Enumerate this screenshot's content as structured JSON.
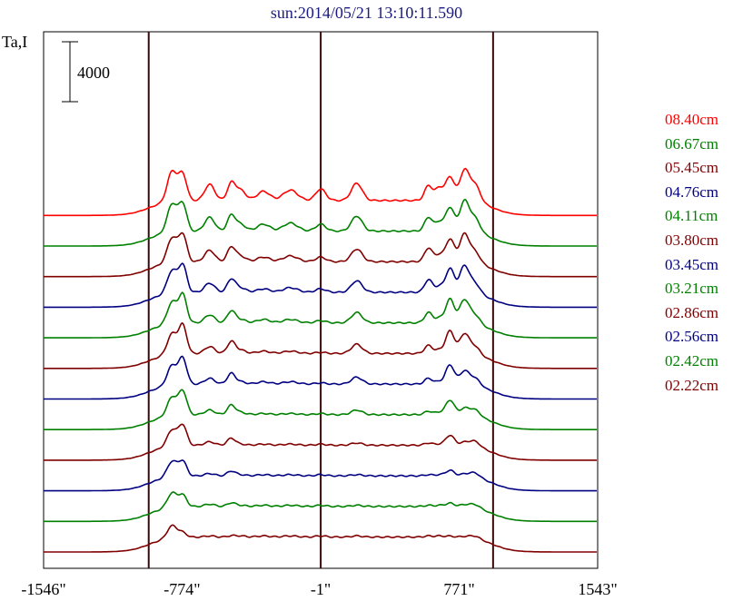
{
  "title": "sun:2014/05/21 13:10:11.590",
  "chart_data": {
    "type": "line",
    "title": "sun:2014/05/21 13:10:11.590",
    "ylabel": "Ta,I",
    "scale_bar_label": "4000",
    "scale_bar_value": 4000,
    "x_ticks": [
      "-1546\"",
      "-774\"",
      "-1\"",
      "771\"",
      "1543\""
    ],
    "x_tick_values": [
      -1546,
      -774,
      -1,
      771,
      1543
    ],
    "xlim": [
      -1546,
      1543
    ],
    "vertical_markers": [
      -960,
      -1,
      960
    ],
    "series": [
      {
        "name": "08.40cm",
        "color": "#ff0000",
        "offset": 11,
        "peaks": [
          2.9,
          2.3,
          1.4,
          1.4,
          0.9,
          0.8,
          0.9,
          1.0,
          1.5,
          1.3,
          1.1,
          2.1,
          2.7,
          1.8
        ]
      },
      {
        "name": "06.67cm",
        "color": "#008000",
        "offset": 10,
        "peaks": [
          2.7,
          2.4,
          1.2,
          1.3,
          0.6,
          0.6,
          0.7,
          0.6,
          1.3,
          1.2,
          0.8,
          2.1,
          2.7,
          1.5
        ]
      },
      {
        "name": "05.45cm",
        "color": "#800000",
        "offset": 9,
        "peaks": [
          2.4,
          2.4,
          1.0,
          1.2,
          0.5,
          0.4,
          0.5,
          0.4,
          1.1,
          1.2,
          0.6,
          2.0,
          2.5,
          1.2
        ]
      },
      {
        "name": "04.76cm",
        "color": "#000080",
        "offset": 8,
        "peaks": [
          2.2,
          2.4,
          0.8,
          1.1,
          0.4,
          0.3,
          0.4,
          0.3,
          1.0,
          1.1,
          0.5,
          2.1,
          2.4,
          1.1
        ]
      },
      {
        "name": "04.11cm",
        "color": "#008000",
        "offset": 7,
        "peaks": [
          2.1,
          2.5,
          0.7,
          1.0,
          0.3,
          0.3,
          0.3,
          0.2,
          0.9,
          0.9,
          0.4,
          2.1,
          2.1,
          1.0
        ]
      },
      {
        "name": "03.80cm",
        "color": "#800000",
        "offset": 6,
        "peaks": [
          2.0,
          2.5,
          0.6,
          1.0,
          0.3,
          0.2,
          0.2,
          0.1,
          0.8,
          0.7,
          0.3,
          2.0,
          1.8,
          0.9
        ]
      },
      {
        "name": "03.45cm",
        "color": "#000080",
        "offset": 5,
        "peaks": [
          1.9,
          2.3,
          0.5,
          0.9,
          0.2,
          0.2,
          0.2,
          0.1,
          0.6,
          0.5,
          0.2,
          1.7,
          1.2,
          0.8
        ]
      },
      {
        "name": "03.21cm",
        "color": "#008000",
        "offset": 4,
        "peaks": [
          1.8,
          2.1,
          0.4,
          0.8,
          0.2,
          0.1,
          0.1,
          0.1,
          0.4,
          0.3,
          0.2,
          1.3,
          0.6,
          0.7
        ]
      },
      {
        "name": "02.86cm",
        "color": "#800000",
        "offset": 3,
        "peaks": [
          1.6,
          1.8,
          0.3,
          0.6,
          0.1,
          0.1,
          0.1,
          0.1,
          0.2,
          0.2,
          0.1,
          0.9,
          0.3,
          0.6
        ]
      },
      {
        "name": "02.56cm",
        "color": "#000080",
        "offset": 2,
        "peaks": [
          1.5,
          1.3,
          0.2,
          0.4,
          0.1,
          0.1,
          0.1,
          0.1,
          0.1,
          0.1,
          0.1,
          0.5,
          0.2,
          0.5
        ]
      },
      {
        "name": "02.42cm",
        "color": "#008000",
        "offset": 1,
        "peaks": [
          1.4,
          1.0,
          0.2,
          0.3,
          0.1,
          0.1,
          0.1,
          0.1,
          0.1,
          0.1,
          0.1,
          0.3,
          0.2,
          0.4
        ]
      },
      {
        "name": "02.22cm",
        "color": "#800000",
        "offset": 0,
        "peaks": [
          1.2,
          0.4,
          0.1,
          0.1,
          0.1,
          0.1,
          0.1,
          0.1,
          0.1,
          0.1,
          0.1,
          0.1,
          0.1,
          0.3
        ]
      }
    ],
    "peak_positions": [
      -830,
      -770,
      -620,
      -500,
      -450,
      -320,
      -170,
      -1,
      200,
      600,
      660,
      720,
      800,
      860
    ],
    "legend_position": "right",
    "grid": false
  }
}
